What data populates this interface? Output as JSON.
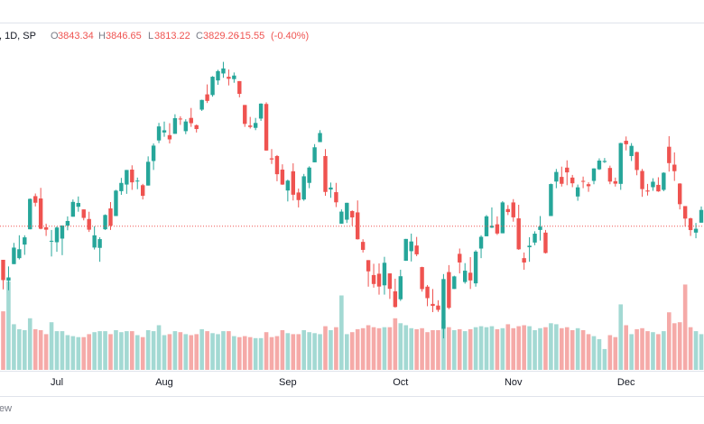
{
  "chart_data": {
    "type": "candlestick",
    "header": {
      "symbol": ", 1D, SP",
      "open_label": "O",
      "open": 3843.34,
      "high_label": "H",
      "high": 3846.65,
      "low_label": "L",
      "low": 3813.22,
      "close_label": "C",
      "close": 3829.26,
      "change": -15.55,
      "change_percent": {
        "value": -0.4,
        "label": "(-0.40%)"
      }
    },
    "footer": "ew",
    "categories": [
      null,
      null,
      null,
      null,
      null,
      null,
      null,
      null,
      null,
      null,
      "Jul",
      null,
      null,
      null,
      null,
      null,
      null,
      null,
      null,
      null,
      null,
      null,
      null,
      null,
      null,
      null,
      null,
      null,
      null,
      null,
      "Aug",
      null,
      null,
      null,
      null,
      null,
      null,
      null,
      null,
      null,
      null,
      null,
      null,
      null,
      null,
      null,
      null,
      null,
      null,
      null,
      null,
      null,
      null,
      "Sep",
      null,
      null,
      null,
      null,
      null,
      null,
      null,
      null,
      null,
      null,
      null,
      null,
      null,
      null,
      null,
      null,
      null,
      null,
      null,
      null,
      "Oct",
      null,
      null,
      null,
      null,
      null,
      null,
      null,
      null,
      null,
      null,
      null,
      null,
      null,
      null,
      null,
      null,
      null,
      null,
      null,
      null,
      "Nov",
      null,
      null,
      null,
      null,
      null,
      null,
      null,
      null,
      null,
      null,
      null,
      null,
      null,
      null,
      null,
      null,
      null,
      null,
      null,
      null,
      "Dec",
      null,
      null,
      null,
      null,
      null,
      null,
      null,
      null,
      null,
      null,
      null,
      null,
      null,
      null
    ],
    "open": [
      3728,
      3665,
      3715,
      3733,
      3774,
      3820,
      3920,
      3913,
      3826,
      3785,
      3781,
      3792,
      3831,
      3858,
      3888,
      3880,
      3851,
      3765,
      3764,
      3820,
      3883,
      3860,
      3935,
      3955,
      4000,
      3966,
      3953,
      3952,
      4026,
      4088,
      4112,
      4104,
      4108,
      4154,
      4116,
      4156,
      4134,
      4181,
      4227,
      4225,
      4269,
      4290,
      4280,
      4273,
      4267,
      4195,
      4133,
      4126,
      4154,
      4198,
      4034,
      4041,
      4000,
      3937,
      3995,
      3931,
      3910,
      3960,
      4022,
      4083,
      4041,
      3940,
      3932,
      3837,
      3849,
      3875,
      3871,
      3782,
      3727,
      3682,
      3686,
      3651,
      3687,
      3633,
      3609,
      3725,
      3754,
      3771,
      3706,
      3647,
      3595,
      3590,
      3520,
      3691,
      3640,
      3746,
      3661,
      3689,
      3657,
      3762,
      3799,
      3825,
      3835,
      3808,
      3881,
      3901,
      3853,
      3733,
      3766,
      3780,
      3818,
      3810,
      3860,
      3964,
      3978,
      4006,
      3976,
      3919,
      3966,
      3956,
      3966,
      4001,
      4023,
      4005,
      3965,
      3957,
      4087,
      4041,
      4053,
      3996,
      3937,
      3947,
      3954,
      3939,
      4069,
      4015,
      3958,
      3890,
      3853,
      3810,
      3840
    ],
    "high": [
      3728,
      3708,
      3779,
      3802,
      3802,
      3913,
      3928,
      3945,
      3837,
      3818,
      3829,
      3832,
      3859,
      3910,
      3919,
      3880,
      3873,
      3829,
      3796,
      3865,
      3902,
      3939,
      3975,
      3999,
      4013,
      3976,
      3957,
      4040,
      4079,
      4141,
      4145,
      4140,
      4167,
      4161,
      4152,
      4186,
      4136,
      4211,
      4257,
      4282,
      4301,
      4325,
      4302,
      4293,
      4267,
      4195,
      4159,
      4156,
      4200,
      4203,
      4062,
      4044,
      4016,
      3970,
      4019,
      3943,
      3987,
      4010,
      4077,
      4119,
      4062,
      3961,
      3960,
      3880,
      3900,
      3877,
      3907,
      3790,
      3727,
      3716,
      3717,
      3737,
      3687,
      3671,
      3698,
      3791,
      3807,
      3797,
      3707,
      3652,
      3640,
      3606,
      3685,
      3712,
      3680,
      3762,
      3718,
      3736,
      3757,
      3802,
      3863,
      3886,
      3859,
      3905,
      3893,
      3911,
      3894,
      3750,
      3796,
      3814,
      3860,
      3818,
      3958,
      4002,
      4009,
      4028,
      3984,
      3955,
      3979,
      3962,
      4004,
      4034,
      4035,
      4012,
      3976,
      4081,
      4100,
      4080,
      4054,
      4002,
      3957,
      3974,
      3977,
      3992,
      4101,
      4052,
      3959,
      3890,
      3855,
      3839,
      3889
    ],
    "low": [
      3639,
      3636,
      3715,
      3729,
      3743,
      3820,
      3889,
      3820,
      3800,
      3738,
      3752,
      3742,
      3817,
      3858,
      3873,
      3847,
      3812,
      3759,
      3722,
      3818,
      3818,
      3860,
      3924,
      3927,
      3939,
      3941,
      3910,
      3952,
      3999,
      4080,
      4099,
      4079,
      4108,
      4135,
      4107,
      4129,
      4112,
      4177,
      4201,
      4220,
      4256,
      4277,
      4254,
      4262,
      4218,
      4129,
      4124,
      4119,
      4147,
      4057,
      4017,
      3965,
      3954,
      3904,
      3907,
      3886,
      3906,
      3944,
      4022,
      4083,
      3921,
      3915,
      3887,
      3837,
      3839,
      3831,
      3789,
      3750,
      3647,
      3644,
      3623,
      3623,
      3610,
      3584,
      3604,
      3725,
      3723,
      3739,
      3632,
      3588,
      3570,
      3571,
      3491,
      3579,
      3640,
      3687,
      3656,
      3640,
      3647,
      3733,
      3799,
      3824,
      3803,
      3808,
      3863,
      3843,
      3758,
      3698,
      3722,
      3772,
      3786,
      3747,
      3860,
      3944,
      3949,
      3953,
      3947,
      3906,
      3944,
      3933,
      3956,
      3999,
      4020,
      3956,
      3949,
      3939,
      4058,
      4026,
      3983,
      3918,
      3922,
      3936,
      3933,
      3935,
      3994,
      3966,
      3880,
      3828,
      3800,
      3793,
      3840
    ],
    "close": [
      3666.77,
      3674.84,
      3764.79,
      3759.89,
      3795.73,
      3911.74,
      3900.11,
      3821.55,
      3818.83,
      3785.38,
      3825.33,
      3831.39,
      3845.08,
      3902.62,
      3899.38,
      3854.43,
      3818.8,
      3801.78,
      3790.38,
      3863.16,
      3830.85,
      3936.69,
      3959.9,
      3998.95,
      3961.63,
      3966.84,
      3921.05,
      4023.61,
      4072.43,
      4130.29,
      4118.63,
      4091.19,
      4155.17,
      4151.94,
      4145.19,
      4140.06,
      4122.47,
      4210.24,
      4207.27,
      4280.15,
      4297.14,
      4305.2,
      4274.04,
      4283.74,
      4228.48,
      4137.99,
      4128.73,
      4140.77,
      4199.12,
      4057.66,
      4030.61,
      3986.16,
      3955,
      3966.85,
      3924.26,
      3908.19,
      3979.87,
      4006.18,
      4067.36,
      4110.41,
      3932.69,
      3946.01,
      3901.35,
      3873.33,
      3899.89,
      3855.93,
      3789.93,
      3757.99,
      3693.23,
      3655.04,
      3647.29,
      3719.04,
      3640.47,
      3585.62,
      3678.43,
      3790.93,
      3783.28,
      3744.52,
      3639.66,
      3612.39,
      3588.84,
      3577.03,
      3669.91,
      3583.07,
      3677.95,
      3719.98,
      3695.16,
      3665.78,
      3752.75,
      3797.34,
      3859.11,
      3830.6,
      3807.3,
      3901.06,
      3871.98,
      3856.1,
      3759.69,
      3719.89,
      3770.55,
      3806.8,
      3828.11,
      3748.57,
      3956.37,
      3992.93,
      3957.25,
      3991.73,
      3958.79,
      3946.56,
      3965.34,
      3949.94,
      4003.58,
      4027.26,
      4026.12,
      3963.94,
      3957.63,
      4080.11,
      4076.57,
      4071.7,
      3998.84,
      3941.26,
      3933.92,
      3963.51,
      3934.38,
      3990.56,
      4019.65,
      3995.32,
      3895.75,
      3852.36,
      3817.66,
      3821.62,
      3878.44
    ],
    "volume": [
      5.9,
      8.9,
      4.6,
      4.1,
      4.0,
      5.2,
      4.1,
      4.0,
      3.6,
      4.8,
      3.9,
      3.9,
      3.5,
      3.4,
      3.3,
      3.3,
      3.6,
      3.8,
      3.9,
      3.9,
      3.6,
      4.0,
      3.8,
      3.9,
      3.9,
      3.5,
      3.3,
      4.0,
      3.9,
      4.5,
      3.5,
      3.6,
      3.9,
      3.8,
      3.6,
      3.5,
      3.6,
      4.1,
      3.9,
      3.7,
      3.6,
      3.9,
      3.9,
      3.4,
      3.3,
      3.4,
      3.3,
      3.2,
      3.2,
      3.8,
      3.3,
      3.4,
      4.0,
      3.7,
      3.6,
      3.6,
      4.0,
      3.8,
      3.7,
      3.6,
      4.4,
      4.0,
      4.3,
      7.5,
      3.6,
      3.8,
      4.1,
      4.2,
      4.5,
      4.3,
      4.2,
      4.3,
      4.3,
      5.2,
      4.7,
      4.5,
      4.2,
      4.1,
      4.2,
      3.8,
      4.0,
      4.0,
      5.0,
      4.3,
      4.0,
      4.1,
      3.9,
      4.1,
      4.3,
      4.4,
      4.3,
      4.4,
      4.1,
      4.2,
      4.6,
      4.2,
      4.4,
      4.5,
      4.4,
      4.0,
      4.2,
      4.3,
      4.7,
      4.6,
      4.2,
      4.3,
      4.0,
      4.2,
      4.0,
      3.6,
      3.4,
      3.1,
      2.1,
      3.5,
      3.3,
      6.6,
      4.5,
      3.6,
      4.1,
      4.2,
      3.9,
      3.8,
      3.6,
      3.9,
      5.8,
      4.7,
      4.8,
      8.6,
      4.3,
      3.9,
      3.6
    ],
    "ylim": [
      3396,
      4430
    ],
    "y2lim": [
      0,
      10
    ],
    "up_color": "#26a69a",
    "down_color": "#ef5350",
    "volume_up_color": "#a3d9d3",
    "volume_down_color": "#f5aaa8",
    "label_color": "#787b86"
  }
}
